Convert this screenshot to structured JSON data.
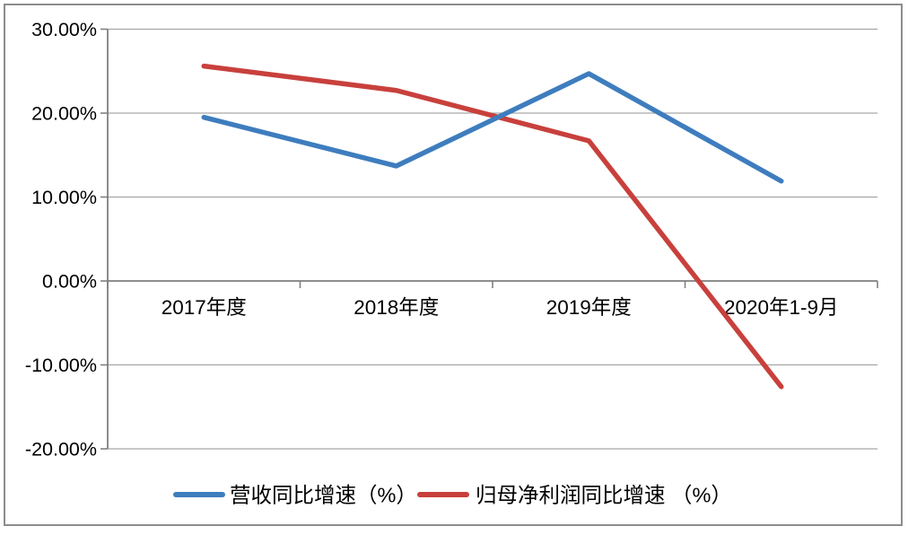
{
  "chart_data": {
    "type": "line",
    "title": "",
    "xlabel": "",
    "ylabel": "",
    "categories": [
      "2017年度",
      "2018年度",
      "2019年度",
      "2020年1-9月"
    ],
    "series": [
      {
        "key": "revenue-yoy-growth",
        "name": "营收同比增速（%）",
        "color": "#3E7DBE",
        "values": [
          19.5,
          13.7,
          24.7,
          11.9
        ]
      },
      {
        "key": "net-profit-yoy-growth",
        "name": "归母净利润同比增速 （%）",
        "color": "#C8403C",
        "values": [
          25.6,
          22.7,
          16.7,
          -12.6
        ]
      }
    ],
    "ylim": [
      -20,
      30
    ],
    "ytick_values": [
      30,
      20,
      10,
      0,
      -10,
      -20
    ],
    "ytick_labels": [
      "30.00%",
      "20.00%",
      "10.00%",
      "0.00%",
      "-10.00%",
      "-20.00%"
    ],
    "grid": true,
    "legend_position": "bottom"
  },
  "style": {
    "gridline_color": "#A6A6A6",
    "axis_color": "#808080",
    "border_color": "#8C8C8C",
    "text_color": "#000000",
    "line_width": 5.5
  }
}
